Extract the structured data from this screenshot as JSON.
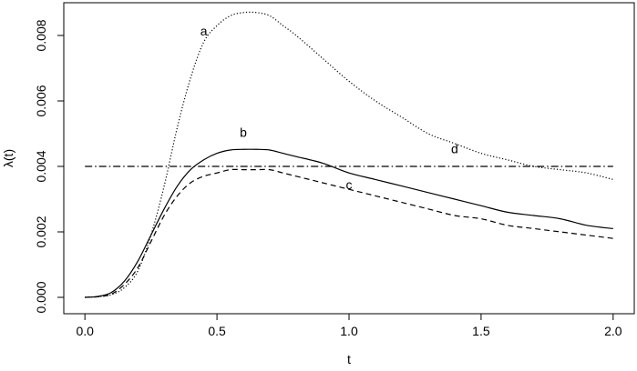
{
  "chart_data": {
    "type": "line",
    "title": "",
    "xlabel": "t",
    "ylabel": "λ(t)",
    "xlim": [
      -0.08,
      2.08
    ],
    "ylim": [
      -0.0005,
      0.009
    ],
    "xticks": [
      0.0,
      0.5,
      1.0,
      1.5,
      2.0
    ],
    "xtick_labels": [
      "0.0",
      "0.5",
      "1.0",
      "1.5",
      "2.0"
    ],
    "yticks": [
      0.0,
      0.002,
      0.004,
      0.006,
      0.008
    ],
    "ytick_labels": [
      "0.000",
      "0.002",
      "0.004",
      "0.006",
      "0.008"
    ],
    "grid": false,
    "legend": "none",
    "x": [
      0.0,
      0.05,
      0.1,
      0.15,
      0.2,
      0.25,
      0.3,
      0.35,
      0.4,
      0.45,
      0.5,
      0.55,
      0.6,
      0.65,
      0.7,
      0.75,
      0.8,
      0.9,
      1.0,
      1.1,
      1.2,
      1.3,
      1.4,
      1.5,
      1.6,
      1.7,
      1.8,
      1.9,
      2.0
    ],
    "series": [
      {
        "name": "",
        "label": "a",
        "style": "dotted",
        "label_at": [
          0.45,
          0.008
        ],
        "values": [
          0.0,
          2e-05,
          8e-05,
          0.0003,
          0.0008,
          0.0019,
          0.0034,
          0.0052,
          0.0067,
          0.0078,
          0.0083,
          0.0086,
          0.0087,
          0.0087,
          0.0086,
          0.0083,
          0.008,
          0.0073,
          0.0066,
          0.006,
          0.0055,
          0.005,
          0.0047,
          0.0044,
          0.0042,
          0.004,
          0.0039,
          0.0038,
          0.0036
        ]
      },
      {
        "name": "",
        "label": "b",
        "style": "solid",
        "label_at": [
          0.6,
          0.0049
        ],
        "values": [
          0.0,
          3e-05,
          0.00015,
          0.0005,
          0.0011,
          0.0019,
          0.0027,
          0.0034,
          0.0039,
          0.0042,
          0.0044,
          0.0045,
          0.00452,
          0.00452,
          0.0045,
          0.0044,
          0.0043,
          0.0041,
          0.0038,
          0.0036,
          0.0034,
          0.0032,
          0.003,
          0.0028,
          0.0026,
          0.0025,
          0.0024,
          0.0022,
          0.0021
        ]
      },
      {
        "name": "",
        "label": "c",
        "style": "dashed",
        "label_at": [
          1.0,
          0.0033
        ],
        "values": [
          0.0,
          2e-05,
          0.0001,
          0.0004,
          0.0009,
          0.0017,
          0.0025,
          0.0031,
          0.0035,
          0.0037,
          0.0038,
          0.0039,
          0.0039,
          0.0039,
          0.0039,
          0.0038,
          0.0037,
          0.0035,
          0.0033,
          0.0031,
          0.0029,
          0.0027,
          0.0025,
          0.0024,
          0.0022,
          0.0021,
          0.002,
          0.0019,
          0.0018
        ]
      },
      {
        "name": "",
        "label": "d",
        "style": "dashdot",
        "label_at": [
          1.4,
          0.0044
        ],
        "values": [
          0.004,
          0.004,
          0.004,
          0.004,
          0.004,
          0.004,
          0.004,
          0.004,
          0.004,
          0.004,
          0.004,
          0.004,
          0.004,
          0.004,
          0.004,
          0.004,
          0.004,
          0.004,
          0.004,
          0.004,
          0.004,
          0.004,
          0.004,
          0.004,
          0.004,
          0.004,
          0.004,
          0.004,
          0.004
        ]
      }
    ]
  }
}
